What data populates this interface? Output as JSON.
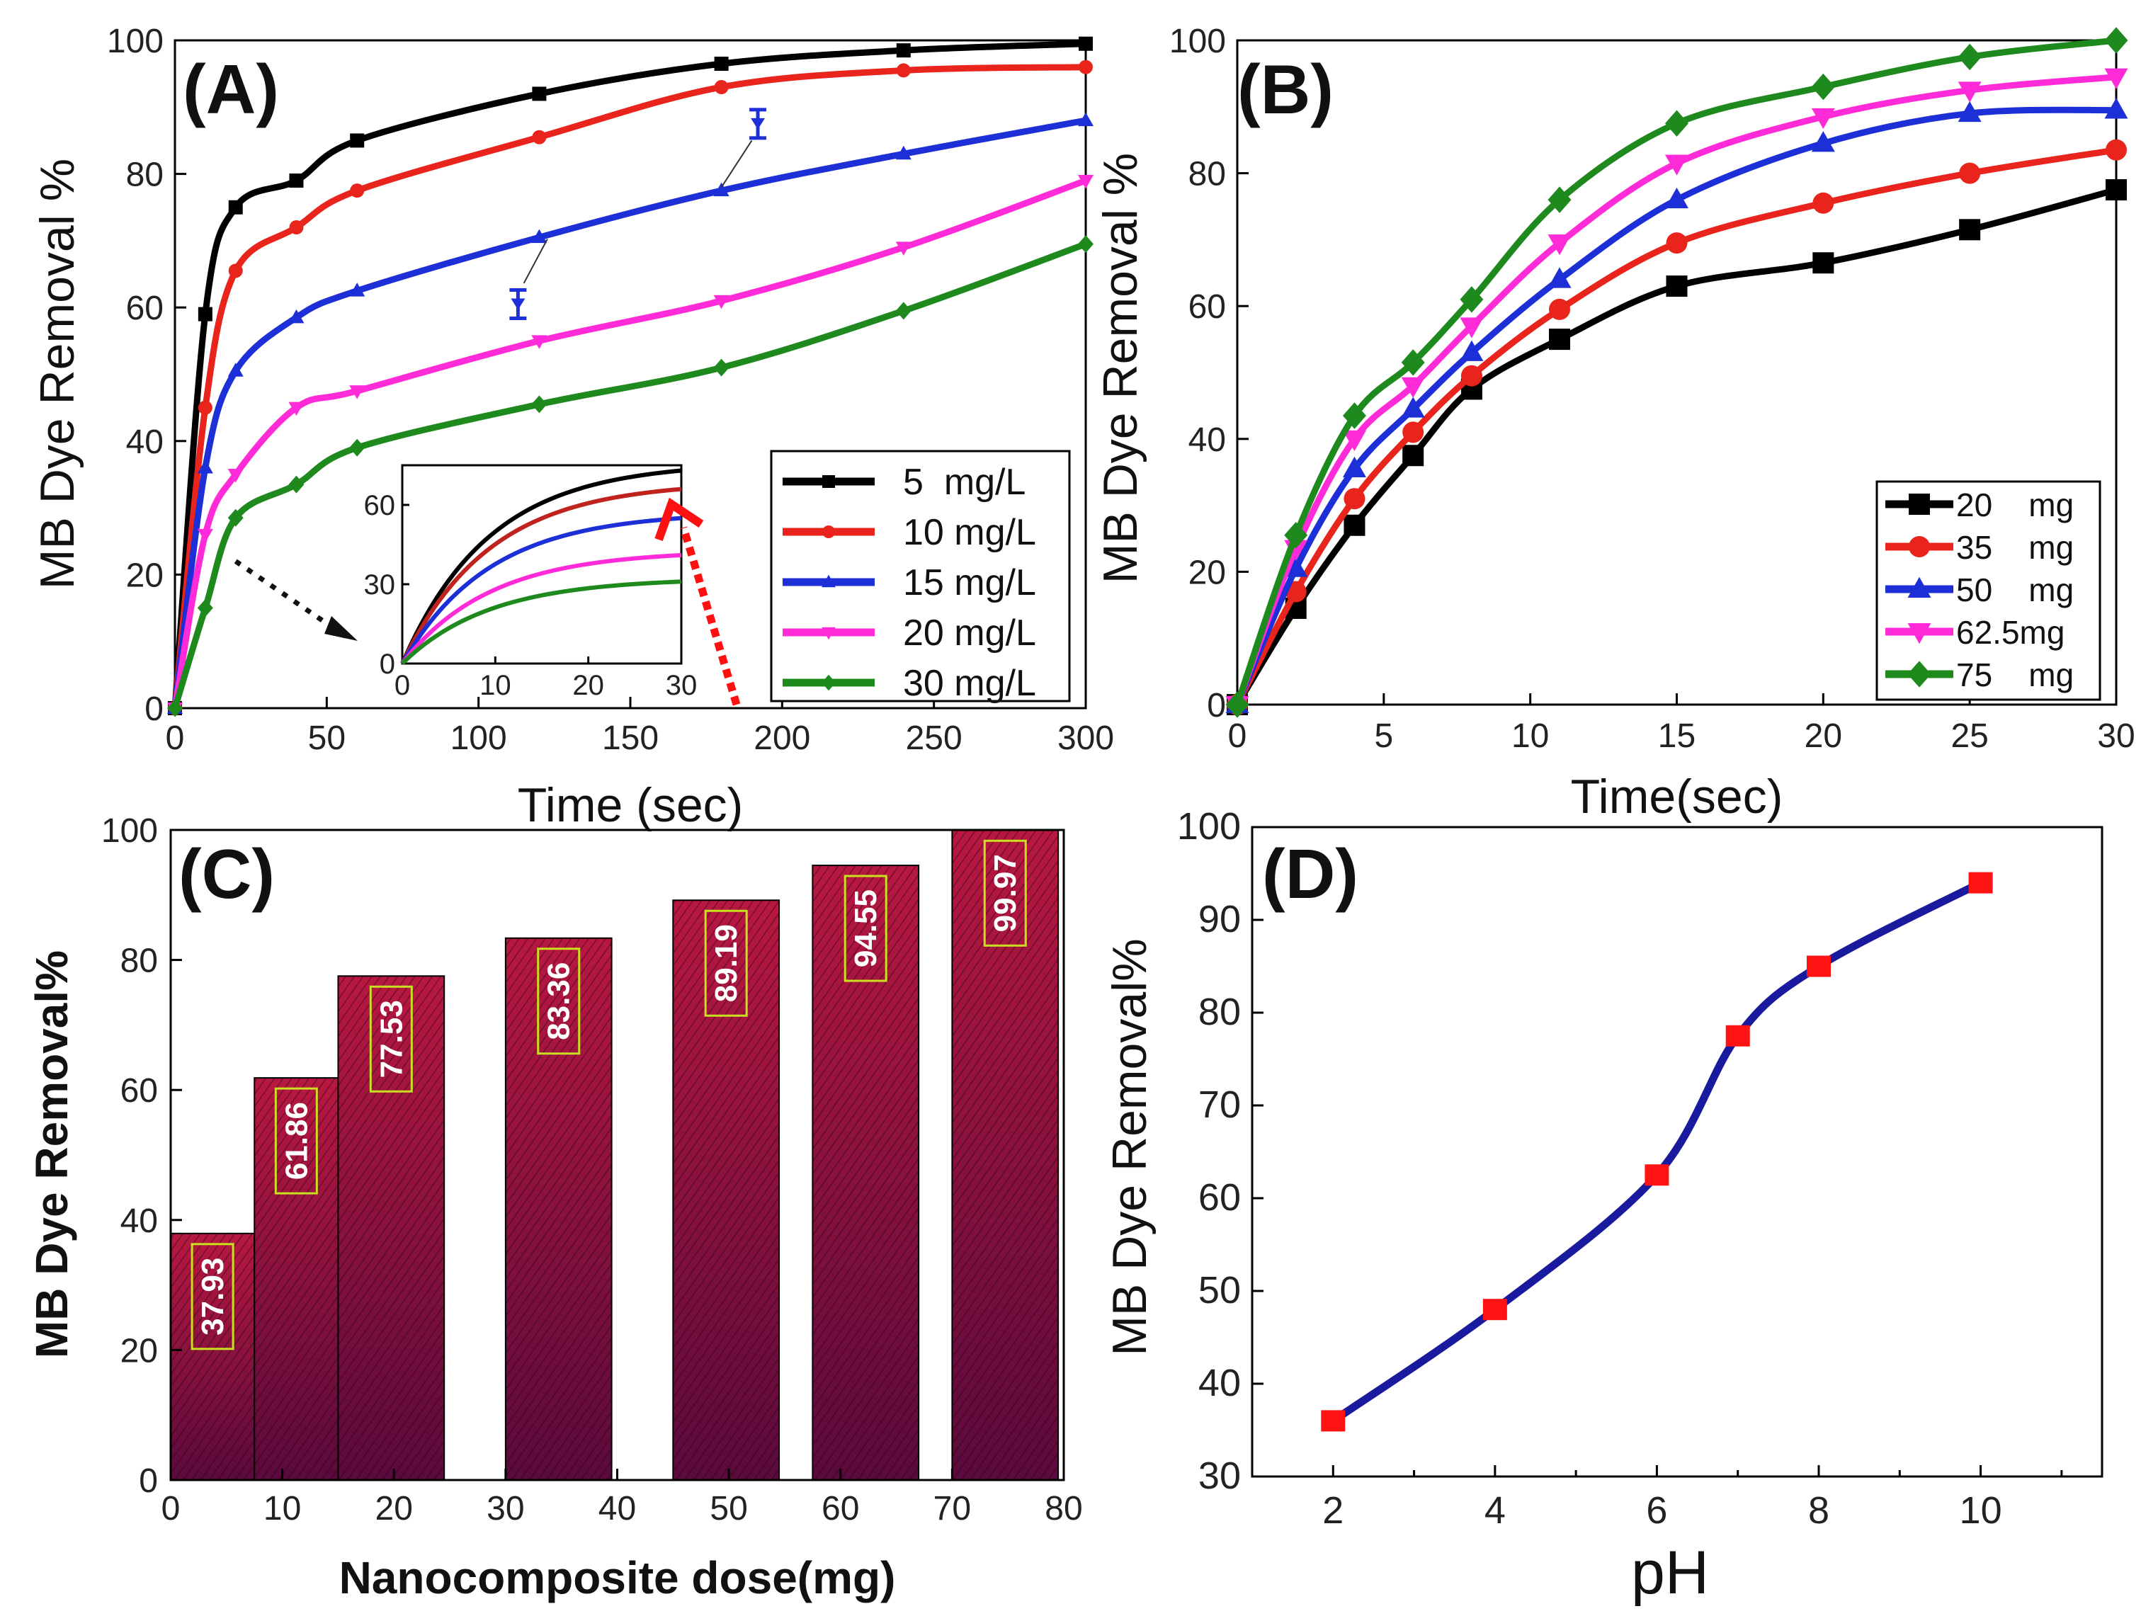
{
  "chart_data": [
    {
      "panel": "(A)",
      "type": "line",
      "xlabel": "Time (sec)",
      "ylabel": "MB Dye Removal %",
      "xlim": [
        0,
        300
      ],
      "ylim": [
        0,
        100
      ],
      "xticks": [
        0,
        50,
        100,
        150,
        200,
        250,
        300
      ],
      "yticks": [
        0,
        20,
        40,
        60,
        80,
        100
      ],
      "legend_position": "bottom-right",
      "series": [
        {
          "name": "5  mg/L",
          "color": "#000000",
          "marker": "square",
          "x": [
            0,
            10,
            20,
            40,
            60,
            120,
            180,
            240,
            300
          ],
          "y": [
            0,
            59,
            75,
            79,
            85,
            92,
            96.5,
            98.5,
            99.5
          ]
        },
        {
          "name": "10 mg/L",
          "color": "#e8241c",
          "marker": "circle",
          "x": [
            0,
            10,
            20,
            40,
            60,
            120,
            180,
            240,
            300
          ],
          "y": [
            0,
            45,
            65.5,
            72,
            77.5,
            85.5,
            93,
            95.5,
            96
          ]
        },
        {
          "name": "15 mg/L",
          "color": "#1d2fd6",
          "marker": "triangle-up",
          "x": [
            0,
            10,
            20,
            40,
            60,
            120,
            180,
            240,
            300
          ],
          "y": [
            0,
            36,
            50.5,
            58.5,
            62.5,
            70.5,
            77.5,
            83,
            88
          ]
        },
        {
          "name": "20 mg/L",
          "color": "#ff2bd8",
          "marker": "triangle-down",
          "x": [
            0,
            10,
            20,
            40,
            60,
            120,
            180,
            240,
            300
          ],
          "y": [
            0,
            26,
            35,
            45,
            47.5,
            55,
            61,
            69,
            79
          ]
        },
        {
          "name": "30 mg/L",
          "color": "#1e8a1e",
          "marker": "diamond",
          "x": [
            0,
            10,
            20,
            40,
            60,
            120,
            180,
            240,
            300
          ],
          "y": [
            0,
            15,
            28.5,
            33.5,
            39,
            45.5,
            51,
            59.5,
            69.5
          ]
        }
      ],
      "error_markers": [
        {
          "x": 113,
          "y": 60.5
        },
        {
          "x": 192,
          "y": 87.5
        }
      ],
      "inset": {
        "xlim": [
          0,
          30
        ],
        "ylim": [
          0,
          75
        ],
        "xticks": [
          0,
          10,
          20,
          30
        ],
        "yticks": [
          0,
          30,
          60
        ],
        "curves": [
          {
            "color": "#000000",
            "y_end": 73
          },
          {
            "color": "#c0231e",
            "y_end": 66
          },
          {
            "color": "#1d2fd6",
            "y_end": 55
          },
          {
            "color": "#ff2bd8",
            "y_end": 41
          },
          {
            "color": "#1e8a1e",
            "y_end": 31
          }
        ]
      }
    },
    {
      "panel": "(B)",
      "type": "line",
      "xlabel": "Time(sec)",
      "ylabel": "MB Dye Removal %",
      "xlim": [
        0,
        30
      ],
      "ylim": [
        0,
        100
      ],
      "xticks": [
        0,
        5,
        10,
        15,
        20,
        25,
        30
      ],
      "yticks": [
        0,
        20,
        40,
        60,
        80,
        100
      ],
      "legend_position": "bottom-right",
      "series": [
        {
          "name": "20    mg",
          "color": "#000000",
          "marker": "square",
          "x": [
            0,
            2,
            4,
            6,
            8,
            11,
            15,
            20,
            25,
            30
          ],
          "y": [
            0,
            14.5,
            27,
            37.5,
            47.5,
            55,
            63,
            66.5,
            71.5,
            77.5
          ]
        },
        {
          "name": "35    mg",
          "color": "#e8241c",
          "marker": "circle",
          "x": [
            0,
            2,
            4,
            6,
            8,
            11,
            15,
            20,
            25,
            30
          ],
          "y": [
            0,
            17,
            31,
            41,
            49.5,
            59.5,
            69.5,
            75.5,
            80,
            83.5
          ]
        },
        {
          "name": "50    mg",
          "color": "#1d2fd6",
          "marker": "triangle-up",
          "x": [
            0,
            2,
            4,
            6,
            8,
            11,
            15,
            20,
            25,
            30
          ],
          "y": [
            0,
            20.5,
            35.5,
            44.5,
            53,
            64,
            76,
            84.5,
            89,
            89.5
          ]
        },
        {
          "name": "62.5mg",
          "color": "#ff2bd8",
          "marker": "triangle-down",
          "x": [
            0,
            2,
            4,
            6,
            8,
            11,
            15,
            20,
            25,
            30
          ],
          "y": [
            0,
            23.5,
            40,
            48,
            57,
            69.5,
            81.5,
            88.5,
            92.5,
            94.5
          ]
        },
        {
          "name": "75    mg",
          "color": "#1e8a1e",
          "marker": "diamond",
          "x": [
            0,
            2,
            4,
            6,
            8,
            11,
            15,
            20,
            25,
            30
          ],
          "y": [
            0,
            25.5,
            43.5,
            51.5,
            61,
            76,
            87.5,
            93,
            97.5,
            100
          ]
        }
      ]
    },
    {
      "panel": "(C)",
      "type": "bar",
      "xlabel": "Nanocomposite dose(mg)",
      "ylabel": "MB Dye Removal%",
      "xlim": [
        0,
        80
      ],
      "ylim": [
        0,
        100
      ],
      "xticks": [
        0,
        10,
        20,
        30,
        40,
        50,
        60,
        70,
        80
      ],
      "yticks": [
        0,
        20,
        40,
        60,
        80,
        100
      ],
      "bar_color": "#a3123f",
      "bars": [
        {
          "from": 0,
          "to": 7.5,
          "value": 37.93,
          "label": "37.93"
        },
        {
          "from": 7.5,
          "to": 15,
          "value": 61.86,
          "label": "61.86"
        },
        {
          "from": 15,
          "to": 24.5,
          "value": 77.53,
          "label": "77.53"
        },
        {
          "from": 30,
          "to": 39.5,
          "value": 83.36,
          "label": "83.36"
        },
        {
          "from": 45,
          "to": 54.5,
          "value": 89.19,
          "label": "89.19"
        },
        {
          "from": 57.5,
          "to": 67,
          "value": 94.55,
          "label": "94.55"
        },
        {
          "from": 70,
          "to": 79.5,
          "value": 99.97,
          "label": "99.97"
        }
      ]
    },
    {
      "panel": "(D)",
      "type": "line",
      "xlabel": "pH",
      "ylabel": "MB Dye Removal%",
      "xlim": [
        1,
        11.5
      ],
      "ylim": [
        30,
        100
      ],
      "xticks": [
        2,
        4,
        6,
        8,
        10
      ],
      "yticks": [
        30,
        40,
        50,
        60,
        70,
        80,
        90,
        100
      ],
      "line_color": "#1a1a9e",
      "marker_color": "#ff1212",
      "series": [
        {
          "name": "pH",
          "x": [
            2,
            4,
            6,
            7,
            8,
            10
          ],
          "y": [
            36,
            48,
            62.5,
            77.5,
            85,
            94
          ]
        }
      ]
    }
  ]
}
